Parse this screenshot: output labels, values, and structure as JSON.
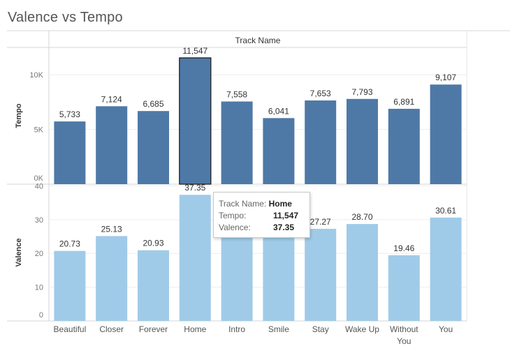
{
  "title": "Valence vs Tempo",
  "header": {
    "label": "Track Name"
  },
  "chart_data": {
    "type": "bar",
    "categories": [
      "Beautiful",
      "Closer",
      "Forever",
      "Home",
      "Intro",
      "Smile",
      "Stay",
      "Wake Up",
      "Without You",
      "You"
    ],
    "category_lines": [
      [
        "Beautiful"
      ],
      [
        "Closer"
      ],
      [
        "Forever"
      ],
      [
        "Home"
      ],
      [
        "Intro"
      ],
      [
        "Smile"
      ],
      [
        "Stay"
      ],
      [
        "Wake Up"
      ],
      [
        "Without",
        "You"
      ],
      [
        "You"
      ]
    ],
    "panels": [
      {
        "name": "Tempo",
        "ylabel": "Tempo",
        "values": [
          5733,
          7124,
          6685,
          11547,
          7558,
          6041,
          7653,
          7793,
          6891,
          9107
        ],
        "labels": [
          "5,733",
          "7,124",
          "6,685",
          "11,547",
          "7,558",
          "6,041",
          "7,653",
          "7,793",
          "6,891",
          "9,107"
        ],
        "ylim": [
          0,
          12500
        ],
        "ticks": [
          0,
          5000,
          10000
        ],
        "tick_labels": [
          "0K",
          "5K",
          "10K"
        ],
        "color": "#4e79a7"
      },
      {
        "name": "Valence",
        "ylabel": "Valence",
        "values": [
          20.73,
          25.13,
          20.93,
          37.35,
          35.0,
          27.5,
          27.27,
          28.7,
          19.46,
          30.61
        ],
        "labels": [
          "20.73",
          "25.13",
          "20.93",
          "37.35",
          "",
          "",
          "27.27",
          "28.70",
          "19.46",
          "30.61"
        ],
        "ylim": [
          0,
          40.5
        ],
        "ticks": [
          0,
          10,
          20,
          30,
          40
        ],
        "tick_labels": [
          "0",
          "10",
          "20",
          "30",
          "40"
        ],
        "color": "#a0cbe8"
      }
    ],
    "highlighted_category": "Home",
    "grid": true
  },
  "tooltip": {
    "track_key": "Track Name:",
    "track_value": "Home",
    "tempo_key": "Tempo:",
    "tempo_value": "11,547",
    "valence_key": "Valence:",
    "valence_value": "37.35"
  }
}
